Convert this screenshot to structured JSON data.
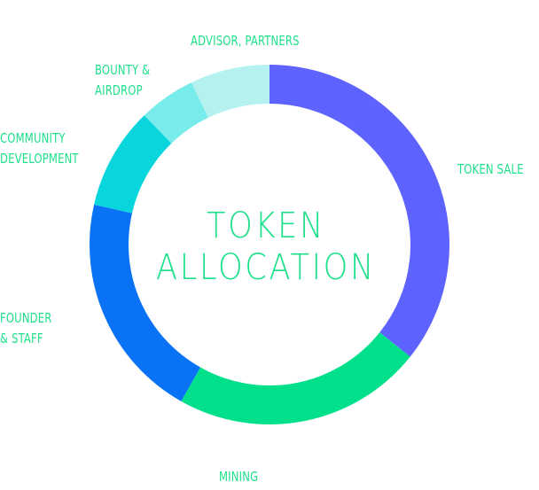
{
  "chart_data": {
    "type": "pie",
    "style": "donut",
    "title_lines": [
      "TOKEN",
      "ALLOCATION"
    ],
    "categories": [
      "TOKEN SALE",
      "MINING",
      "FOUNDER & STAFF",
      "COMMUNITY DEVELOPMENT",
      "BOUNTY & AIRDROP",
      "ADVISOR, PARTNERS"
    ],
    "label_lines": [
      [
        "TOKEN SALE"
      ],
      [
        "MINING"
      ],
      [
        "FOUNDER",
        "& STAFF"
      ],
      [
        "COMMUNITY",
        "DEVELOPMENT"
      ],
      [
        "BOUNTY &",
        "AIRDROP"
      ],
      [
        "ADVISOR, PARTNERS"
      ]
    ],
    "values": [
      35,
      22,
      20,
      9,
      5,
      7
    ],
    "colors": [
      "#5e63ff",
      "#00e08a",
      "#0a73f5",
      "#08d6dc",
      "#78ecea",
      "#b4f1ef"
    ],
    "label_color": "#1fe08a",
    "legend": "labels-around-ring"
  }
}
